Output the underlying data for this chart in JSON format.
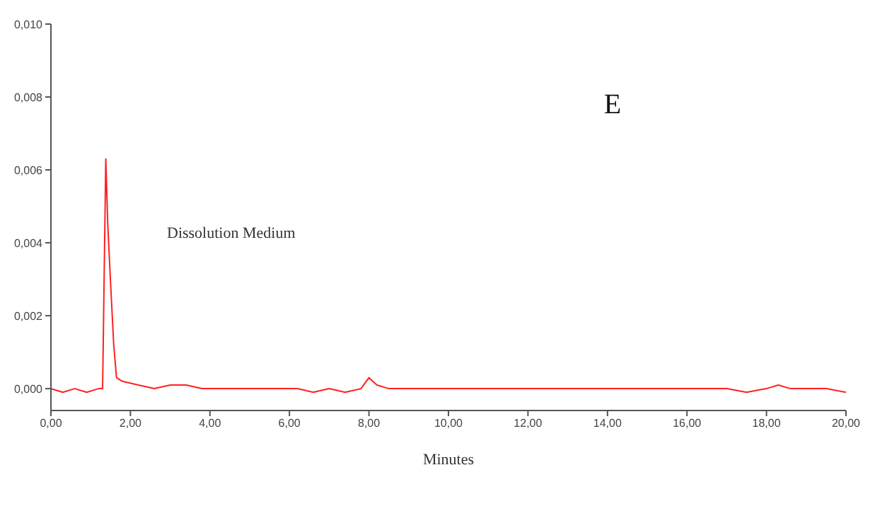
{
  "chart_data": {
    "type": "line",
    "title": "E",
    "xlabel": "Minutes",
    "x": [
      0,
      0.3,
      0.6,
      0.9,
      1.2,
      1.3,
      1.38,
      1.43,
      1.5,
      1.58,
      1.65,
      1.8,
      2.2,
      2.6,
      3.0,
      3.4,
      3.8,
      4.2,
      4.6,
      5.0,
      5.4,
      5.8,
      6.2,
      6.6,
      7.0,
      7.4,
      7.8,
      8.0,
      8.2,
      8.5,
      9.0,
      9.5,
      10.0,
      10.5,
      11.0,
      11.5,
      12.0,
      12.5,
      13.0,
      13.5,
      14.0,
      14.5,
      15.0,
      15.5,
      16.0,
      16.5,
      17.0,
      17.5,
      18.0,
      18.3,
      18.6,
      19.0,
      19.5,
      20.0
    ],
    "series": [
      {
        "color": "#ff2020",
        "values": [
          0.0,
          -0.0001,
          0.0,
          -0.0001,
          0.0,
          0.0,
          0.0063,
          0.0045,
          0.0029,
          0.0012,
          0.0003,
          0.0002,
          0.0001,
          0.0,
          0.0001,
          0.0001,
          0.0,
          0.0,
          0.0,
          0.0,
          0.0,
          0.0,
          0.0,
          -0.0001,
          0.0,
          -0.0001,
          0.0,
          0.0003,
          0.0001,
          0.0,
          0.0,
          0.0,
          0.0,
          0.0,
          0.0,
          0.0,
          0.0,
          0.0,
          0.0,
          0.0,
          0.0,
          0.0,
          0.0,
          0.0,
          0.0,
          0.0,
          0.0,
          -0.0001,
          0.0,
          0.0001,
          0.0,
          0.0,
          0.0,
          -0.0001
        ]
      }
    ],
    "xlim": [
      0,
      20
    ],
    "xticks": [
      {
        "value": 0,
        "label": "0,00"
      },
      {
        "value": 2,
        "label": "2,00"
      },
      {
        "value": 4,
        "label": "4,00"
      },
      {
        "value": 6,
        "label": "6,00"
      },
      {
        "value": 8,
        "label": "8,00"
      },
      {
        "value": 10,
        "label": "10,00"
      },
      {
        "value": 12,
        "label": "12,00"
      },
      {
        "value": 14,
        "label": "14,00"
      },
      {
        "value": 16,
        "label": "16,00"
      },
      {
        "value": 18,
        "label": "18,00"
      },
      {
        "value": 20,
        "label": "20,00"
      }
    ],
    "ylim": [
      -0.0006,
      0.01
    ],
    "yticks": [
      {
        "value": 0,
        "label": "0,000"
      },
      {
        "value": 0.002,
        "label": "0,002"
      },
      {
        "value": 0.004,
        "label": "0,004"
      },
      {
        "value": 0.006,
        "label": "0,006"
      },
      {
        "value": 0.008,
        "label": "0,008"
      },
      {
        "value": 0.01,
        "label": "0,010"
      }
    ],
    "annotations": [
      "Dissolution Medium"
    ],
    "grid": false,
    "legend": false,
    "marker": "none",
    "line_style": "solid"
  }
}
